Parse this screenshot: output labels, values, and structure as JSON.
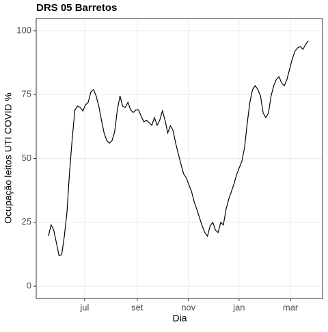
{
  "chart_data": {
    "type": "line",
    "title": "DRS 05 Barretos",
    "x_label": "Dia",
    "y_label": "Ocupação leitos UTI COVID %",
    "series": [
      {
        "name": "DRS 05 Barretos",
        "color": "#000000",
        "values": [
          19.6,
          24,
          22,
          17,
          12,
          12.3,
          19.5,
          29,
          45,
          58,
          69,
          70.5,
          70,
          68.6,
          71,
          72,
          76,
          77,
          74.5,
          70.5,
          65,
          60,
          57,
          56,
          57,
          60.5,
          69,
          74.5,
          70.5,
          70,
          72,
          69,
          68,
          69,
          69,
          66.5,
          64.3,
          65,
          64,
          63,
          66,
          63,
          65,
          68.6,
          65,
          60,
          62.8,
          61,
          56,
          51.7,
          47.7,
          44,
          42.4,
          39.7,
          37,
          33,
          30,
          26.8,
          23.6,
          21,
          19.6,
          23.6,
          25,
          22,
          21,
          25,
          24,
          30,
          34,
          37,
          40,
          43.7,
          46.4,
          49,
          54.4,
          63.8,
          72,
          77,
          78.5,
          77,
          74.5,
          67.8,
          66,
          67.8,
          74.5,
          78.5,
          81,
          82,
          79.4,
          78.5,
          81,
          85,
          89,
          92,
          93.3,
          93.8,
          92.7,
          94.6,
          96
        ]
      }
    ],
    "xlim": [
      -4.6,
      103.4
    ],
    "xticks": [
      {
        "value": 13.66,
        "label": "jul"
      },
      {
        "value": 33.5,
        "label": "set"
      },
      {
        "value": 52.8,
        "label": "nov"
      },
      {
        "value": 71.9,
        "label": "jan"
      },
      {
        "value": 91.3,
        "label": "mar"
      }
    ],
    "ylim": [
      -4.8,
      104.8
    ],
    "yticks": [
      0,
      25,
      50,
      75,
      100
    ],
    "grid": true
  }
}
